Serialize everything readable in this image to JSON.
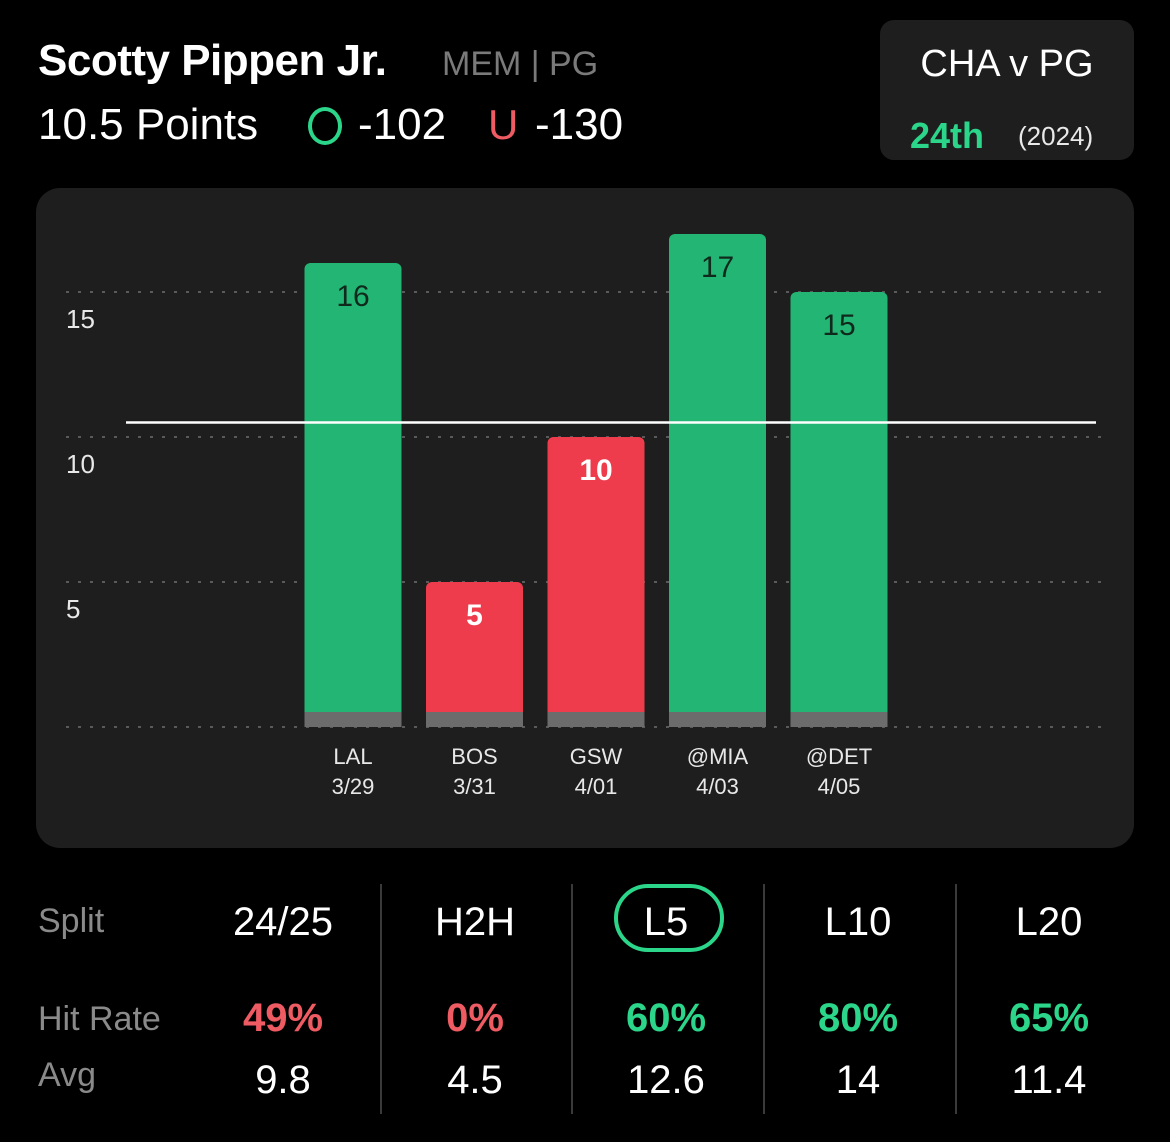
{
  "header": {
    "player_name": "Scotty Pippen Jr.",
    "meta": "MEM | PG",
    "line": "10.5 Points",
    "over_label": "O",
    "over_odds": "-102",
    "under_label": "U",
    "under_odds": "-130"
  },
  "matchup": {
    "title": "CHA v PG",
    "rank": "24th",
    "year": "(2024)"
  },
  "colors": {
    "over": "#23b573",
    "under": "#ee3c4c",
    "accent_green": "#2bd68a",
    "accent_red": "#ef5b63",
    "card_bg": "#1e1e1e"
  },
  "chart_data": {
    "type": "bar",
    "categories": [
      "LAL",
      "BOS",
      "GSW",
      "@MIA",
      "@DET"
    ],
    "dates": [
      "3/29",
      "3/31",
      "4/01",
      "4/03",
      "4/05"
    ],
    "values": [
      16,
      5,
      10,
      17,
      15
    ],
    "threshold": 10.5,
    "y_ticks": [
      5,
      10,
      15
    ],
    "ylim": [
      0,
      17
    ],
    "grid": true
  },
  "splits": {
    "row_labels": {
      "split": "Split",
      "hit_rate": "Hit Rate",
      "avg": "Avg"
    },
    "active_index": 2,
    "columns": [
      {
        "label": "24/25",
        "hit_rate": "49%",
        "hit_color": "#ef5b63",
        "avg": "9.8"
      },
      {
        "label": "H2H",
        "hit_rate": "0%",
        "hit_color": "#ef5b63",
        "avg": "4.5"
      },
      {
        "label": "L5",
        "hit_rate": "60%",
        "hit_color": "#2bd68a",
        "avg": "12.6"
      },
      {
        "label": "L10",
        "hit_rate": "80%",
        "hit_color": "#2bd68a",
        "avg": "14"
      },
      {
        "label": "L20",
        "hit_rate": "65%",
        "hit_color": "#2bd68a",
        "avg": "11.4"
      }
    ]
  }
}
